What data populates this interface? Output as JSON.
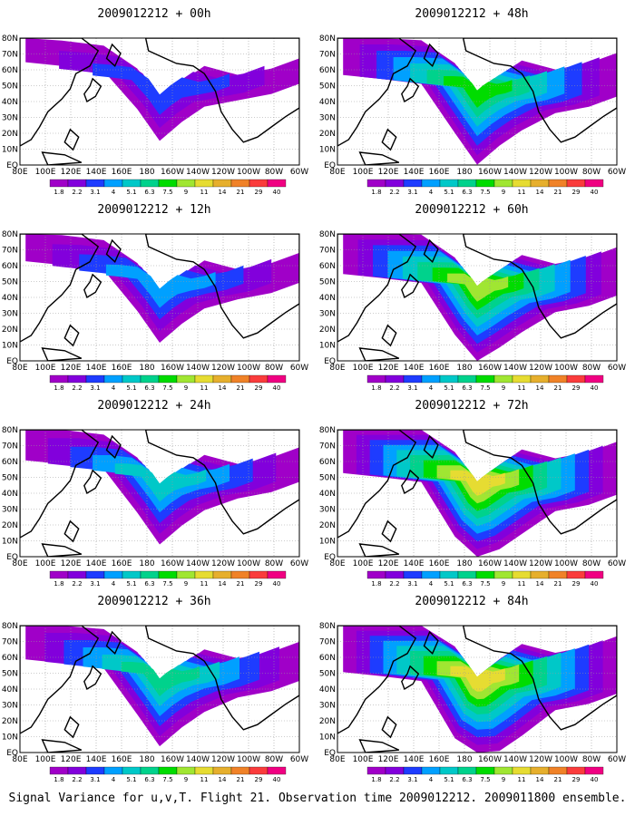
{
  "caption": "Signal Variance for u,v,T. Flight 21. Observation time 2009012212. 2009011800 ensemble.",
  "lat_labels": [
    "80N",
    "70N",
    "60N",
    "50N",
    "40N",
    "30N",
    "20N",
    "10N",
    "EQ"
  ],
  "lon_labels": [
    "80E",
    "100E",
    "120E",
    "140E",
    "160E",
    "180",
    "160W",
    "140W",
    "120W",
    "100W",
    "80W",
    "60W"
  ],
  "colorbar": {
    "labels": [
      "1.8",
      "2.2",
      "3.1",
      "4",
      "5.1",
      "6.3",
      "7.5",
      "9",
      "11",
      "14",
      "21",
      "29",
      "40"
    ],
    "colors": [
      "#a000c8",
      "#8200dc",
      "#1e3cff",
      "#00a0ff",
      "#00c8c8",
      "#00d28c",
      "#00dc00",
      "#a0e632",
      "#e6dc32",
      "#e6af2d",
      "#f08228",
      "#fa3c3c",
      "#f00082"
    ]
  },
  "panels": [
    {
      "title": "2009012212 + 00h",
      "level": 0
    },
    {
      "title": "2009012212 + 48h",
      "level": 4
    },
    {
      "title": "2009012212 + 12h",
      "level": 1
    },
    {
      "title": "2009012212 + 60h",
      "level": 5
    },
    {
      "title": "2009012212 + 24h",
      "level": 2
    },
    {
      "title": "2009012212 + 72h",
      "level": 6
    },
    {
      "title": "2009012212 + 36h",
      "level": 3
    },
    {
      "title": "2009012212 + 84h",
      "level": 7
    }
  ]
}
